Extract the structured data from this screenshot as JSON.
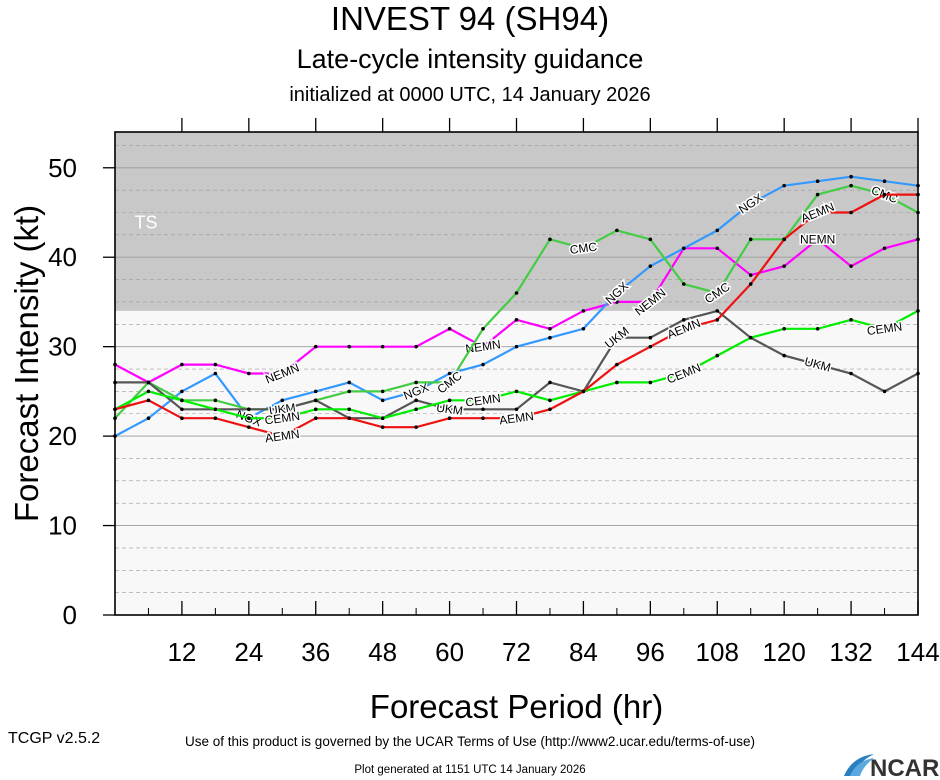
{
  "header": {
    "title": "INVEST 94 (SH94)",
    "subtitle": "Late-cycle intensity guidance",
    "init_line": "initialized at 0000 UTC, 14 January 2026"
  },
  "footer": {
    "terms": "Use of this product is governed by the UCAR Terms of Use (http://www2.ucar.edu/terms-of-use)",
    "version": "TCGP v2.5.2",
    "generated": "Plot generated at 1151 UTC   14 January 2026",
    "logo_text": "NCAR"
  },
  "chart_data": {
    "type": "line",
    "xlabel": "Forecast Period (hr)",
    "ylabel": "Forecast Intensity (kt)",
    "xlim": [
      0,
      144
    ],
    "ylim": [
      0,
      54
    ],
    "xticks": [
      12,
      24,
      36,
      48,
      60,
      72,
      84,
      96,
      108,
      120,
      132,
      144
    ],
    "yticks": [
      0,
      10,
      20,
      30,
      40,
      50
    ],
    "band": {
      "label": "TS",
      "y_from": 34,
      "y_to": 54,
      "color": "#c8c8c8"
    },
    "series": [
      {
        "name": "NEMN",
        "color": "#ff00ff",
        "x": [
          0,
          6,
          12,
          18,
          24,
          30,
          36,
          42,
          48,
          54,
          60,
          66,
          72,
          78,
          84,
          90,
          96,
          102,
          108,
          114,
          120,
          126,
          132,
          138,
          144
        ],
        "y": [
          28,
          26,
          28,
          28,
          27,
          27,
          30,
          30,
          30,
          30,
          32,
          30,
          33,
          32,
          34,
          35,
          35,
          41,
          41,
          38,
          39,
          42,
          39,
          41,
          42
        ],
        "label_x": [
          30,
          66,
          96,
          126
        ]
      },
      {
        "name": "NGX",
        "color": "#3399ff",
        "x": [
          0,
          6,
          12,
          18,
          24,
          30,
          36,
          42,
          48,
          54,
          60,
          66,
          72,
          78,
          84,
          90,
          96,
          102,
          108,
          114,
          120,
          126,
          132,
          138,
          144
        ],
        "y": [
          20,
          22,
          25,
          27,
          22,
          24,
          25,
          26,
          24,
          25,
          27,
          28,
          30,
          31,
          32,
          36,
          39,
          41,
          43,
          46,
          48,
          48.5,
          49,
          48.5,
          48
        ],
        "label_x": [
          24,
          54,
          90,
          114
        ]
      },
      {
        "name": "CMC",
        "color": "#44cc44",
        "x": [
          0,
          6,
          12,
          18,
          24,
          30,
          36,
          42,
          48,
          54,
          60,
          66,
          72,
          78,
          84,
          90,
          96,
          102,
          108,
          114,
          120,
          126,
          132,
          138,
          144
        ],
        "y": [
          22,
          26,
          24,
          24,
          23,
          23,
          24,
          25,
          25,
          26,
          26,
          32,
          36,
          42,
          41,
          43,
          42,
          37,
          36,
          42,
          42,
          47,
          48,
          47,
          45
        ],
        "label_x": [
          60,
          84,
          108,
          138
        ]
      },
      {
        "name": "UKM",
        "color": "#555555",
        "x": [
          0,
          6,
          12,
          18,
          24,
          30,
          36,
          42,
          48,
          54,
          60,
          66,
          72,
          78,
          84,
          90,
          96,
          102,
          108,
          114,
          120,
          126,
          132,
          138,
          144
        ],
        "y": [
          26,
          26,
          23,
          23,
          23,
          23,
          24,
          22,
          22,
          24,
          23,
          23,
          23,
          26,
          25,
          31,
          31,
          33,
          34,
          31,
          29,
          28,
          27,
          25,
          27
        ],
        "label_x": [
          30,
          60,
          90,
          126
        ]
      },
      {
        "name": "CEMN",
        "color": "#00ee00",
        "x": [
          0,
          6,
          12,
          18,
          24,
          30,
          36,
          42,
          48,
          54,
          60,
          66,
          72,
          78,
          84,
          90,
          96,
          102,
          108,
          114,
          120,
          126,
          132,
          138,
          144
        ],
        "y": [
          23,
          25,
          24,
          23,
          22,
          22,
          23,
          23,
          22,
          23,
          24,
          24,
          25,
          24,
          25,
          26,
          26,
          27,
          29,
          31,
          32,
          32,
          33,
          32,
          34
        ],
        "label_x": [
          30,
          66,
          102,
          138
        ]
      },
      {
        "name": "AEMN",
        "color": "#ee1111",
        "x": [
          0,
          6,
          12,
          18,
          24,
          30,
          36,
          42,
          48,
          54,
          60,
          66,
          72,
          78,
          84,
          90,
          96,
          102,
          108,
          114,
          120,
          126,
          132,
          138,
          144
        ],
        "y": [
          23,
          24,
          22,
          22,
          21,
          20,
          22,
          22,
          21,
          21,
          22,
          22,
          22,
          23,
          25,
          28,
          30,
          32,
          33,
          37,
          42,
          45,
          45,
          47,
          47
        ],
        "label_x": [
          30,
          72,
          102,
          126
        ]
      }
    ]
  }
}
